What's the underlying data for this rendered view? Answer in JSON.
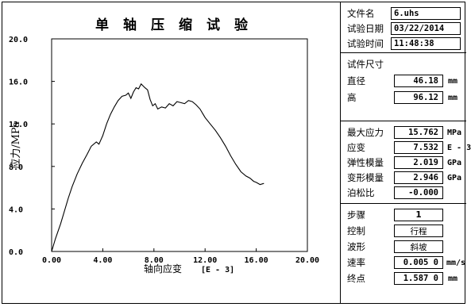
{
  "chart_title": "单轴压缩试验",
  "file_info": {
    "file_name_label": "文件名",
    "file_name": "6.uhs",
    "test_date_label": "试验日期",
    "test_date": "03/22/2014",
    "test_time_label": "试验时间",
    "test_time": "11:48:38"
  },
  "specimen": {
    "title": "试件尺寸",
    "diameter_label": "直径",
    "diameter": "46.18",
    "diameter_unit": "mm",
    "height_label": "高",
    "height": "96.12",
    "height_unit": "mm"
  },
  "results": {
    "max_stress_label": "最大应力",
    "max_stress": "15.762",
    "max_stress_unit": "MPa",
    "strain_label": "应变",
    "strain": "7.532",
    "strain_unit": "E - 3",
    "elastic_modulus_label": "弹性模量",
    "elastic_modulus": "2.019",
    "elastic_modulus_unit": "GPa",
    "deformation_modulus_label": "变形模量",
    "deformation_modulus": "2.946",
    "deformation_modulus_unit": "GPa",
    "poisson_label": "泊松比",
    "poisson": "-0.000"
  },
  "control": {
    "step_label": "步骤",
    "step": "1",
    "control_label": "控制",
    "control": "行程",
    "waveform_label": "波形",
    "waveform": "斜坡",
    "rate_label": "速率",
    "rate": "0.005 0",
    "rate_unit": "mm/s",
    "endpoint_label": "终点",
    "endpoint": "1.587 0",
    "endpoint_unit": "mm"
  },
  "chart_data": {
    "type": "line",
    "title": "单轴压缩试验",
    "xlabel": "轴向应变",
    "xlabel_unit": "[E - 3]",
    "ylabel": "应力/MPa",
    "xlim": [
      0,
      20
    ],
    "ylim": [
      0,
      20
    ],
    "x_ticks": [
      "0.00",
      "4.00",
      "8.00",
      "12.00",
      "16.00",
      "20.00"
    ],
    "y_ticks": [
      "0.0",
      "4.0",
      "8.0",
      "12.0",
      "16.0",
      "20.0"
    ],
    "grid": false,
    "series": [
      {
        "x": [
          0.0,
          0.3,
          0.7,
          1.0,
          1.3,
          1.6,
          2.0,
          2.4,
          2.8,
          3.1,
          3.5,
          3.7,
          4.0,
          4.3,
          4.6,
          4.9,
          5.2,
          5.5,
          5.8,
          6.0,
          6.2,
          6.4,
          6.6,
          6.8,
          7.0,
          7.3,
          7.5,
          7.7,
          7.9,
          8.1,
          8.3,
          8.6,
          8.9,
          9.2,
          9.5,
          9.8,
          10.1,
          10.4,
          10.7,
          11.0,
          11.3,
          11.6,
          12.0,
          12.4,
          12.8,
          13.2,
          13.6,
          14.0,
          14.4,
          14.8,
          15.2,
          15.5,
          15.8,
          16.0,
          16.3,
          16.6
        ],
        "y": [
          0.0,
          1.2,
          2.6,
          3.8,
          5.0,
          6.1,
          7.3,
          8.3,
          9.2,
          9.9,
          10.3,
          10.1,
          10.9,
          12.0,
          12.9,
          13.6,
          14.2,
          14.6,
          14.7,
          14.9,
          14.4,
          15.0,
          15.4,
          15.3,
          15.76,
          15.4,
          15.2,
          14.3,
          13.7,
          13.9,
          13.4,
          13.6,
          13.5,
          13.9,
          13.7,
          14.1,
          14.0,
          13.9,
          14.2,
          14.1,
          13.8,
          13.4,
          12.6,
          12.0,
          11.4,
          10.7,
          9.9,
          9.0,
          8.2,
          7.5,
          7.1,
          6.9,
          6.6,
          6.5,
          6.3,
          6.4
        ]
      }
    ]
  }
}
